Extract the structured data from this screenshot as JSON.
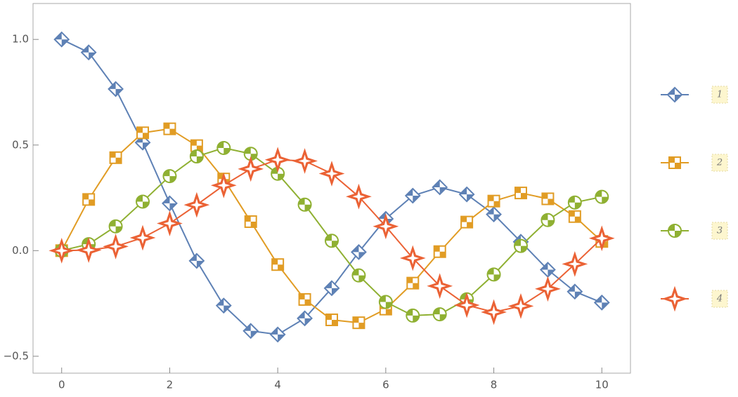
{
  "chart_data": {
    "type": "line",
    "x": [
      0,
      0.5,
      1,
      1.5,
      2,
      2.5,
      3,
      3.5,
      4,
      4.5,
      5,
      5.5,
      6,
      6.5,
      7,
      7.5,
      8,
      8.5,
      9,
      9.5,
      10
    ],
    "series": [
      {
        "name": "1",
        "color": "#5e81b5",
        "marker": "diamond",
        "values": [
          1,
          0.9385,
          0.7652,
          0.5118,
          0.2239,
          -0.0484,
          -0.2601,
          -0.3801,
          -0.3971,
          -0.3205,
          -0.1776,
          -0.0068,
          0.1506,
          0.2601,
          0.3001,
          0.2663,
          0.1717,
          0.0419,
          -0.0903,
          -0.1939,
          -0.2459
        ]
      },
      {
        "name": "2",
        "color": "#e19c24",
        "marker": "square",
        "values": [
          0,
          0.2423,
          0.4401,
          0.5579,
          0.5767,
          0.4971,
          0.3391,
          0.1374,
          -0.066,
          -0.2311,
          -0.3276,
          -0.3414,
          -0.2767,
          -0.1538,
          -0.0047,
          0.1352,
          0.2346,
          0.2731,
          0.2453,
          0.1613,
          0.0435
        ]
      },
      {
        "name": "3",
        "color": "#8fb032",
        "marker": "circle",
        "values": [
          0,
          0.0306,
          0.1149,
          0.2321,
          0.3528,
          0.4461,
          0.4861,
          0.4586,
          0.3641,
          0.2178,
          0.0466,
          -0.1173,
          -0.2429,
          -0.3074,
          -0.3014,
          -0.2303,
          -0.113,
          0.0223,
          0.1448,
          0.2279,
          0.2546
        ]
      },
      {
        "name": "4",
        "color": "#eb6235",
        "marker": "star",
        "values": [
          0,
          0.0026,
          0.0196,
          0.061,
          0.1289,
          0.2166,
          0.3091,
          0.3868,
          0.4302,
          0.4247,
          0.3648,
          0.2561,
          0.1148,
          -0.0353,
          -0.1676,
          -0.2581,
          -0.2911,
          -0.2626,
          -0.1809,
          -0.0634,
          0.0584
        ]
      }
    ],
    "xlim": [
      -0.53,
      10.53
    ],
    "ylim": [
      -0.58,
      1.17
    ],
    "xticks": [
      0,
      2,
      4,
      6,
      8,
      10
    ],
    "yticks": [
      {
        "value": -0.5,
        "label": "−0.5"
      },
      {
        "value": 0,
        "label": "0.0"
      },
      {
        "value": 0.5,
        "label": "0.5"
      },
      {
        "value": 1,
        "label": "1.0"
      }
    ],
    "grid": false,
    "legend": "right"
  }
}
